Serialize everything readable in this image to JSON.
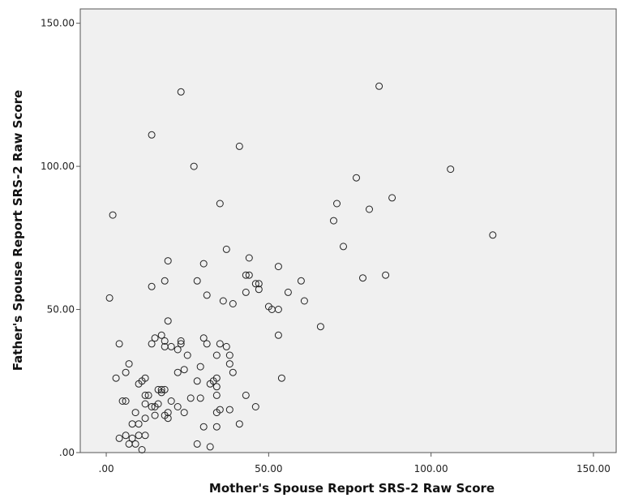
{
  "chart_data": {
    "type": "scatter",
    "xlabel": "Mother's Spouse Report SRS-2 Raw Score",
    "ylabel": "Father's Spouse Report SRS-2 Raw Score",
    "xlim": [
      -8,
      157
    ],
    "ylim": [
      0,
      155
    ],
    "x_ticks": [
      0,
      50,
      100,
      150
    ],
    "x_tick_labels": [
      ".00",
      "50.00",
      "100.00",
      "150.00"
    ],
    "y_ticks": [
      0,
      50,
      100,
      150
    ],
    "y_tick_labels": [
      ".00",
      "50.00",
      "100.00",
      "150.00"
    ],
    "grid": false,
    "colors": {
      "plot_background": "#f0f0f0",
      "marker": "#222222"
    },
    "points": [
      [
        1,
        54
      ],
      [
        2,
        83
      ],
      [
        3,
        26
      ],
      [
        4,
        38
      ],
      [
        4,
        5
      ],
      [
        5,
        18
      ],
      [
        6,
        18
      ],
      [
        6,
        6
      ],
      [
        6,
        28
      ],
      [
        7,
        31
      ],
      [
        7,
        3
      ],
      [
        8,
        5
      ],
      [
        8,
        10
      ],
      [
        9,
        14
      ],
      [
        9,
        3
      ],
      [
        10,
        6
      ],
      [
        10,
        10
      ],
      [
        10,
        24
      ],
      [
        11,
        25
      ],
      [
        11,
        1
      ],
      [
        12,
        26
      ],
      [
        12,
        20
      ],
      [
        12,
        17
      ],
      [
        12,
        12
      ],
      [
        12,
        6
      ],
      [
        13,
        20
      ],
      [
        14,
        58
      ],
      [
        14,
        38
      ],
      [
        14,
        16
      ],
      [
        14,
        111
      ],
      [
        15,
        40
      ],
      [
        15,
        16
      ],
      [
        15,
        13
      ],
      [
        16,
        17
      ],
      [
        16,
        22
      ],
      [
        17,
        41
      ],
      [
        17,
        22
      ],
      [
        17,
        21
      ],
      [
        18,
        39
      ],
      [
        18,
        37
      ],
      [
        18,
        22
      ],
      [
        18,
        60
      ],
      [
        18,
        13
      ],
      [
        19,
        67
      ],
      [
        19,
        46
      ],
      [
        19,
        14
      ],
      [
        19,
        12
      ],
      [
        20,
        37
      ],
      [
        20,
        18
      ],
      [
        22,
        36
      ],
      [
        22,
        28
      ],
      [
        22,
        16
      ],
      [
        23,
        126
      ],
      [
        23,
        39
      ],
      [
        23,
        38
      ],
      [
        24,
        29
      ],
      [
        24,
        14
      ],
      [
        25,
        34
      ],
      [
        26,
        19
      ],
      [
        27,
        100
      ],
      [
        28,
        60
      ],
      [
        28,
        25
      ],
      [
        28,
        3
      ],
      [
        29,
        30
      ],
      [
        29,
        19
      ],
      [
        30,
        66
      ],
      [
        30,
        40
      ],
      [
        30,
        9
      ],
      [
        31,
        55
      ],
      [
        31,
        38
      ],
      [
        32,
        24
      ],
      [
        32,
        2
      ],
      [
        33,
        25
      ],
      [
        34,
        34
      ],
      [
        34,
        26
      ],
      [
        34,
        23
      ],
      [
        34,
        20
      ],
      [
        34,
        14
      ],
      [
        34,
        9
      ],
      [
        35,
        87
      ],
      [
        35,
        38
      ],
      [
        35,
        15
      ],
      [
        36,
        53
      ],
      [
        37,
        71
      ],
      [
        37,
        37
      ],
      [
        38,
        34
      ],
      [
        38,
        31
      ],
      [
        38,
        15
      ],
      [
        39,
        52
      ],
      [
        39,
        28
      ],
      [
        41,
        107
      ],
      [
        41,
        10
      ],
      [
        43,
        62
      ],
      [
        43,
        56
      ],
      [
        43,
        20
      ],
      [
        44,
        68
      ],
      [
        44,
        62
      ],
      [
        46,
        59
      ],
      [
        46,
        16
      ],
      [
        47,
        59
      ],
      [
        47,
        57
      ],
      [
        50,
        51
      ],
      [
        51,
        50
      ],
      [
        53,
        65
      ],
      [
        53,
        50
      ],
      [
        53,
        41
      ],
      [
        54,
        26
      ],
      [
        56,
        56
      ],
      [
        60,
        60
      ],
      [
        61,
        53
      ],
      [
        66,
        44
      ],
      [
        70,
        81
      ],
      [
        71,
        87
      ],
      [
        73,
        72
      ],
      [
        77,
        96
      ],
      [
        79,
        61
      ],
      [
        81,
        85
      ],
      [
        84,
        128
      ],
      [
        86,
        62
      ],
      [
        88,
        89
      ],
      [
        106,
        99
      ],
      [
        119,
        76
      ]
    ]
  }
}
